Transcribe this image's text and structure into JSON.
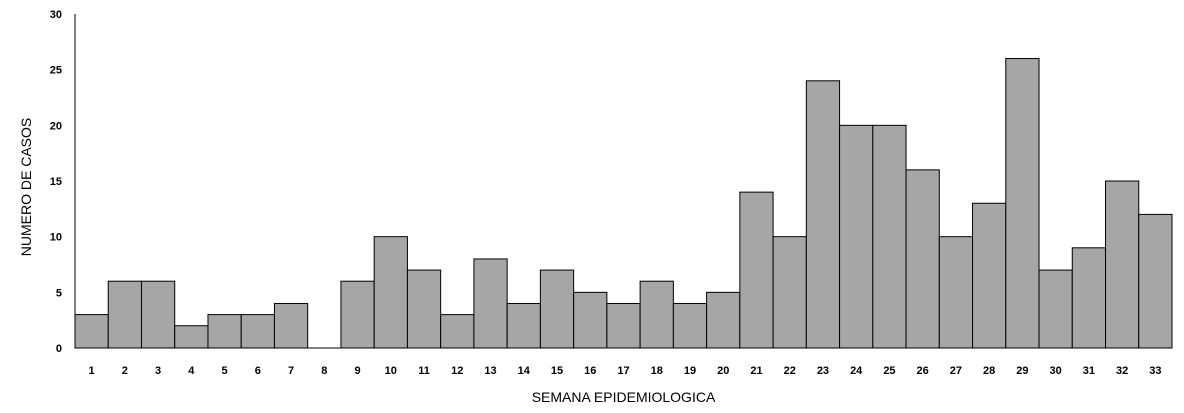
{
  "chart_data": {
    "type": "bar",
    "categories": [
      "1",
      "2",
      "3",
      "4",
      "5",
      "6",
      "7",
      "8",
      "9",
      "10",
      "11",
      "12",
      "13",
      "14",
      "15",
      "16",
      "17",
      "18",
      "19",
      "20",
      "21",
      "22",
      "23",
      "24",
      "25",
      "26",
      "27",
      "28",
      "29",
      "30",
      "31",
      "32",
      "33"
    ],
    "values": [
      3,
      6,
      6,
      2,
      3,
      3,
      4,
      0,
      6,
      10,
      7,
      3,
      8,
      4,
      7,
      5,
      4,
      6,
      4,
      5,
      14,
      10,
      24,
      20,
      20,
      16,
      10,
      13,
      26,
      7,
      9,
      15,
      12
    ],
    "xlabel": "SEMANA EPIDEMIOLOGICA",
    "ylabel": "NUMERO DE CASOS",
    "ylim": [
      0,
      30
    ],
    "yticks": [
      "0",
      "5",
      "10",
      "15",
      "20",
      "25",
      "30"
    ],
    "grid": false,
    "legend": "none",
    "colors": {
      "bar_fill": "#a6a6a6",
      "bar_stroke": "#000000",
      "axis": "#000000"
    }
  }
}
